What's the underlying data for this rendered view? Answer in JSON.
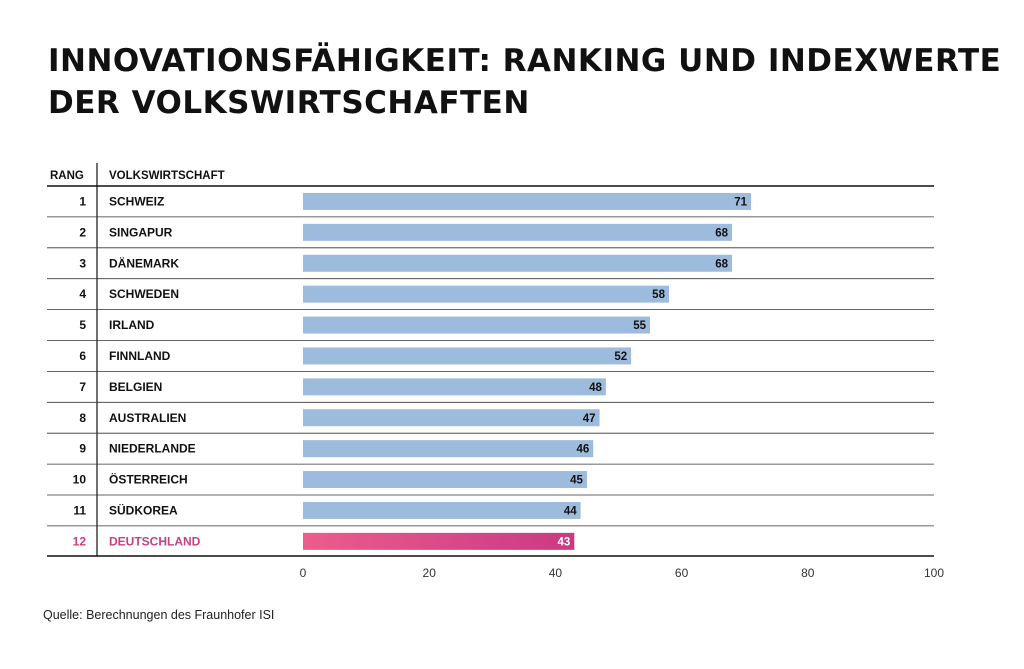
{
  "title_line1": "INNOVATIONSFÄHIGKEIT: RANKING UND INDEXWERTE",
  "title_line2": "DER VOLKSWIRTSCHAFTEN",
  "source": "Quelle: Berechnungen des Fraunhofer ISI",
  "colors": {
    "bar": "#9dbcdd",
    "highlight_start": "#ec5c8c",
    "highlight_end": "#c93a84",
    "highlight_text": "#c7417f"
  },
  "chart_data": {
    "type": "bar",
    "orientation": "horizontal",
    "columns": [
      "RANG",
      "VOLKSWIRTSCHAFT"
    ],
    "rows": [
      {
        "rank": "1",
        "country": "SCHWEIZ",
        "value": 71
      },
      {
        "rank": "2",
        "country": "SINGAPUR",
        "value": 68
      },
      {
        "rank": "3",
        "country": "DÄNEMARK",
        "value": 68
      },
      {
        "rank": "4",
        "country": "SCHWEDEN",
        "value": 58
      },
      {
        "rank": "5",
        "country": "IRLAND",
        "value": 55
      },
      {
        "rank": "6",
        "country": "FINNLAND",
        "value": 52
      },
      {
        "rank": "7",
        "country": "BELGIEN",
        "value": 48
      },
      {
        "rank": "8",
        "country": "AUSTRALIEN",
        "value": 47
      },
      {
        "rank": "9",
        "country": "NIEDERLANDE",
        "value": 46
      },
      {
        "rank": "10",
        "country": "ÖSTERREICH",
        "value": 45
      },
      {
        "rank": "11",
        "country": "SÜDKOREA",
        "value": 44
      },
      {
        "rank": "12",
        "country": "DEUTSCHLAND",
        "value": 43,
        "highlight": true
      }
    ],
    "xlim": [
      0,
      100
    ],
    "xticks": [
      "0",
      "20",
      "40",
      "60",
      "80",
      "100"
    ],
    "grid": false
  }
}
